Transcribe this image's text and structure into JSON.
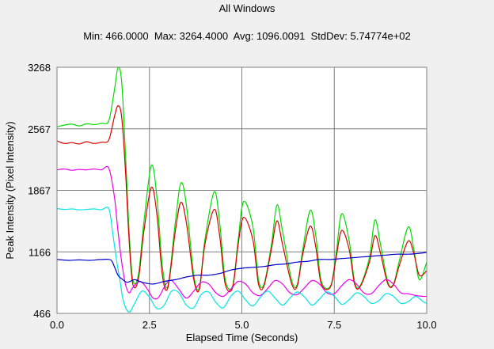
{
  "chart_data": {
    "type": "line",
    "title": "All Windows",
    "subtitle": "Min: 466.0000  Max: 3264.4000  Avg: 1096.0091  StdDev: 5.74774e+02",
    "xlabel": "Elapsed Time (Seconds)",
    "ylabel": "Peak Intensity (Pixel Intensity)",
    "xlim": [
      0,
      10
    ],
    "ylim": [
      466,
      3268
    ],
    "x_ticks": [
      0,
      2.5,
      5,
      7.5,
      10
    ],
    "x_tick_labels": [
      "0.0",
      "2.5",
      "5.0",
      "7.5",
      "10.0"
    ],
    "y_ticks": [
      466,
      1166,
      1867,
      2567,
      3268
    ],
    "y_tick_labels": [
      "466",
      "1166",
      "1867",
      "2567",
      "3268"
    ],
    "grid": true,
    "legend": "none",
    "series": [
      {
        "color": "#00dd00",
        "x": [
          0,
          0.2,
          0.4,
          0.6,
          0.8,
          1.0,
          1.2,
          1.4,
          1.55,
          1.65,
          1.75,
          1.85,
          1.95,
          2.05,
          2.2,
          2.35,
          2.55,
          2.7,
          2.85,
          3.0,
          3.2,
          3.35,
          3.5,
          3.7,
          3.85,
          4.0,
          4.25,
          4.4,
          4.55,
          4.75,
          4.9,
          5.05,
          5.3,
          5.45,
          5.6,
          5.8,
          5.95,
          6.1,
          6.35,
          6.5,
          6.65,
          6.85,
          7.0,
          7.15,
          7.4,
          7.55,
          7.7,
          7.9,
          8.05,
          8.2,
          8.45,
          8.6,
          8.75,
          8.95,
          9.1,
          9.25,
          9.5,
          9.65,
          9.8,
          10.0
        ],
        "values": [
          2590,
          2610,
          2620,
          2600,
          2625,
          2615,
          2630,
          2660,
          3000,
          3264,
          3100,
          2300,
          1400,
          850,
          900,
          1500,
          2150,
          1800,
          1000,
          780,
          1500,
          1950,
          1700,
          900,
          760,
          1300,
          1850,
          1500,
          850,
          780,
          1300,
          1740,
          1450,
          850,
          800,
          1250,
          1700,
          1400,
          840,
          800,
          1200,
          1640,
          1350,
          830,
          780,
          1150,
          1600,
          1300,
          830,
          780,
          1100,
          1530,
          1250,
          820,
          800,
          1050,
          1450,
          1200,
          850,
          1050
        ]
      },
      {
        "color": "#dd0000",
        "x": [
          0,
          0.2,
          0.4,
          0.6,
          0.8,
          1.0,
          1.2,
          1.4,
          1.55,
          1.65,
          1.75,
          1.85,
          1.95,
          2.05,
          2.2,
          2.35,
          2.55,
          2.7,
          2.85,
          3.0,
          3.2,
          3.35,
          3.5,
          3.7,
          3.85,
          4.0,
          4.25,
          4.4,
          4.55,
          4.75,
          4.9,
          5.05,
          5.3,
          5.45,
          5.6,
          5.8,
          5.95,
          6.1,
          6.35,
          6.5,
          6.65,
          6.85,
          7.0,
          7.15,
          7.4,
          7.55,
          7.7,
          7.9,
          8.05,
          8.2,
          8.45,
          8.6,
          8.75,
          8.95,
          9.1,
          9.25,
          9.5,
          9.65,
          9.8,
          10.0
        ],
        "values": [
          2430,
          2400,
          2410,
          2395,
          2420,
          2400,
          2415,
          2440,
          2700,
          2830,
          2700,
          2100,
          1300,
          800,
          850,
          1400,
          1900,
          1600,
          900,
          760,
          1400,
          1730,
          1500,
          850,
          740,
          1250,
          1650,
          1350,
          800,
          760,
          1250,
          1560,
          1300,
          800,
          780,
          1200,
          1520,
          1250,
          800,
          780,
          1150,
          1460,
          1220,
          800,
          770,
          1100,
          1410,
          1200,
          800,
          770,
          1050,
          1350,
          1150,
          800,
          790,
          1000,
          1290,
          1150,
          900,
          950
        ]
      },
      {
        "color": "#ee00ee",
        "x": [
          0,
          0.2,
          0.4,
          0.6,
          0.8,
          1.0,
          1.2,
          1.4,
          1.55,
          1.65,
          1.75,
          1.85,
          1.95,
          2.05,
          2.25,
          2.45,
          2.6,
          2.75,
          2.95,
          3.1,
          3.3,
          3.5,
          3.7,
          3.9,
          4.1,
          4.3,
          4.5,
          4.7,
          4.9,
          5.1,
          5.3,
          5.5,
          5.7,
          5.9,
          6.1,
          6.3,
          6.5,
          6.7,
          6.9,
          7.1,
          7.3,
          7.5,
          7.7,
          7.9,
          8.1,
          8.3,
          8.5,
          8.7,
          8.9,
          9.1,
          9.3,
          9.5,
          9.7,
          9.9,
          10.0
        ],
        "values": [
          2100,
          2110,
          2095,
          2105,
          2100,
          2110,
          2100,
          2120,
          1800,
          1400,
          1050,
          800,
          700,
          760,
          830,
          740,
          640,
          650,
          800,
          840,
          740,
          640,
          720,
          820,
          800,
          700,
          660,
          740,
          830,
          800,
          700,
          670,
          750,
          840,
          800,
          700,
          680,
          760,
          840,
          800,
          700,
          690,
          780,
          850,
          800,
          700,
          690,
          780,
          850,
          800,
          700,
          690,
          670,
          660,
          660
        ]
      },
      {
        "color": "#00e6e6",
        "x": [
          0,
          0.2,
          0.4,
          0.6,
          0.8,
          1.0,
          1.2,
          1.4,
          1.5,
          1.6,
          1.7,
          1.8,
          1.95,
          2.1,
          2.3,
          2.5,
          2.7,
          2.9,
          3.1,
          3.3,
          3.5,
          3.7,
          3.9,
          4.1,
          4.3,
          4.5,
          4.7,
          4.9,
          5.1,
          5.3,
          5.5,
          5.7,
          5.9,
          6.1,
          6.3,
          6.5,
          6.7,
          6.9,
          7.1,
          7.3,
          7.5,
          7.7,
          7.9,
          8.1,
          8.3,
          8.5,
          8.7,
          8.9,
          9.1,
          9.3,
          9.5,
          9.7,
          9.9,
          10.0
        ],
        "values": [
          1660,
          1650,
          1655,
          1645,
          1650,
          1655,
          1645,
          1660,
          1400,
          1100,
          850,
          600,
          480,
          580,
          720,
          650,
          520,
          560,
          720,
          700,
          560,
          530,
          680,
          710,
          590,
          530,
          660,
          720,
          620,
          550,
          650,
          720,
          640,
          560,
          640,
          710,
          650,
          560,
          630,
          710,
          660,
          570,
          620,
          700,
          660,
          580,
          610,
          690,
          660,
          580,
          600,
          660,
          600,
          580
        ]
      },
      {
        "color": "#0000cc",
        "x": [
          0,
          0.3,
          0.6,
          0.9,
          1.2,
          1.45,
          1.55,
          1.65,
          1.75,
          1.9,
          2.1,
          2.3,
          2.6,
          2.9,
          3.2,
          3.5,
          3.8,
          4.1,
          4.4,
          4.7,
          5.0,
          5.3,
          5.6,
          5.9,
          6.2,
          6.5,
          6.8,
          7.1,
          7.4,
          7.7,
          8.0,
          8.3,
          8.6,
          8.9,
          9.2,
          9.5,
          9.8,
          10.0
        ],
        "values": [
          1080,
          1070,
          1075,
          1070,
          1080,
          1075,
          1000,
          900,
          860,
          820,
          850,
          820,
          800,
          830,
          850,
          880,
          900,
          900,
          920,
          960,
          980,
          990,
          1000,
          1020,
          1030,
          1050,
          1060,
          1080,
          1080,
          1090,
          1100,
          1110,
          1120,
          1130,
          1140,
          1140,
          1150,
          1160
        ]
      }
    ]
  }
}
